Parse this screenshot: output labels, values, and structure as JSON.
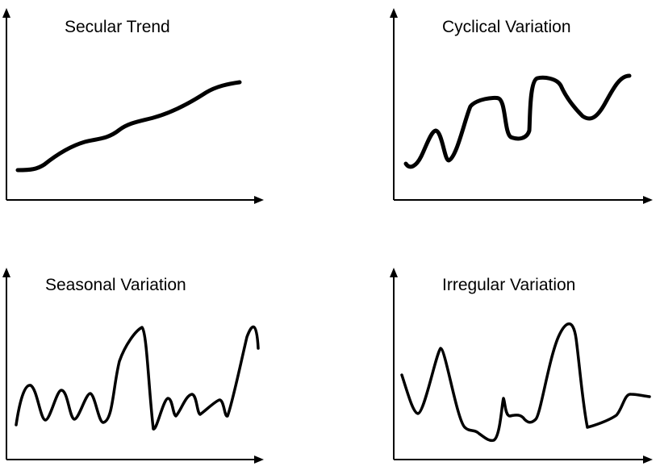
{
  "diagram": {
    "panels": [
      {
        "id": "secular",
        "title": "Secular Trend"
      },
      {
        "id": "cyclical",
        "title": "Cyclical Variation"
      },
      {
        "id": "seasonal",
        "title": "Seasonal Variation"
      },
      {
        "id": "irregular",
        "title": "Irregular Variation"
      }
    ],
    "line_color": "#000000",
    "background_color": "#ffffff"
  }
}
